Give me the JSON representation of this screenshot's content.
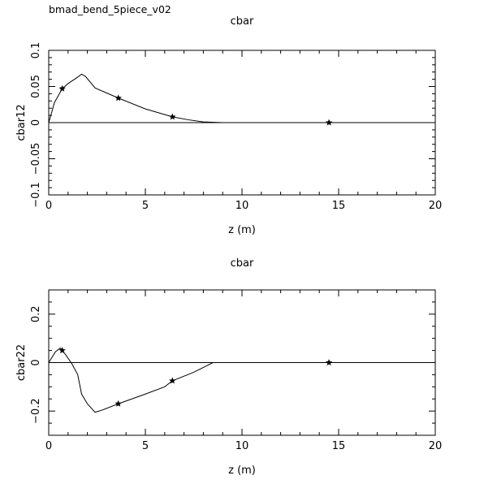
{
  "page": {
    "title": "bmad_bend_5piece_v02"
  },
  "colors": {
    "line": "#000000",
    "background": "#ffffff"
  },
  "chart_data": [
    {
      "type": "line",
      "title": "cbar",
      "xlabel": "z (m)",
      "ylabel": "cbar12",
      "xlim": [
        0,
        20
      ],
      "ylim": [
        -0.1,
        0.1
      ],
      "xticks": [
        0,
        5,
        10,
        15,
        20
      ],
      "xtick_labels": [
        "0",
        "5",
        "10",
        "15",
        "20"
      ],
      "yticks": [
        -0.1,
        -0.05,
        0,
        0.05,
        0.1
      ],
      "ytick_labels": [
        "−0.1",
        "−0.05",
        "0",
        "0.05",
        "0.1"
      ],
      "grid": false,
      "series": [
        {
          "x": [
            0,
            0.3,
            0.7,
            1.0,
            1.5,
            1.7,
            1.9,
            2.4,
            3.6,
            5.0,
            6.4,
            7.2,
            8.0,
            9.0,
            10.0,
            12.0,
            14.5,
            17.0,
            20.0
          ],
          "y": [
            0.0,
            0.028,
            0.047,
            0.054,
            0.063,
            0.067,
            0.064,
            0.048,
            0.034,
            0.019,
            0.008,
            0.004,
            0.001,
            0.0,
            0.0,
            0.0,
            0.0,
            0.0,
            0.0
          ]
        }
      ],
      "markers": {
        "x": [
          0.7,
          3.6,
          6.4,
          14.5
        ],
        "y": [
          0.047,
          0.034,
          0.008,
          0.0
        ]
      }
    },
    {
      "type": "line",
      "title": "cbar",
      "xlabel": "z (m)",
      "ylabel": "cbar22",
      "xlim": [
        0,
        20
      ],
      "ylim": [
        -0.3,
        0.3
      ],
      "xticks": [
        0,
        5,
        10,
        15,
        20
      ],
      "xtick_labels": [
        "0",
        "5",
        "10",
        "15",
        "20"
      ],
      "yticks": [
        -0.2,
        0,
        0.2
      ],
      "ytick_labels": [
        "−0.2",
        "0",
        "0.2"
      ],
      "grid": false,
      "series": [
        {
          "x": [
            0,
            0.35,
            0.6,
            0.7,
            0.9,
            1.2,
            1.5,
            1.7,
            2.0,
            2.4,
            2.8,
            3.6,
            5.0,
            6.0,
            6.4,
            7.5,
            8.5,
            9.0,
            10.0,
            12.0,
            14.5,
            17.0,
            20.0
          ],
          "y": [
            0.0,
            0.045,
            0.06,
            0.05,
            0.03,
            -0.005,
            -0.05,
            -0.13,
            -0.17,
            -0.205,
            -0.195,
            -0.17,
            -0.13,
            -0.1,
            -0.075,
            -0.04,
            0.0,
            0.0,
            0.0,
            0.0,
            0.0,
            0.0,
            0.0
          ]
        }
      ],
      "markers": {
        "x": [
          0.7,
          3.6,
          6.4,
          14.5
        ],
        "y": [
          0.05,
          -0.17,
          -0.075,
          0.0
        ]
      }
    }
  ]
}
